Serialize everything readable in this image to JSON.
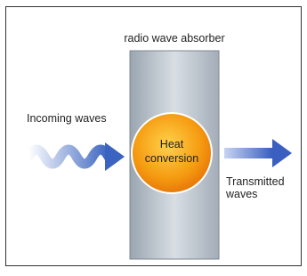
{
  "absorber_label": "radio wave absorber",
  "incoming_label": "Incoming waves",
  "heat_label": [
    "Heat",
    "conversion"
  ],
  "transmitted_label": [
    "Transmitted",
    "waves"
  ]
}
